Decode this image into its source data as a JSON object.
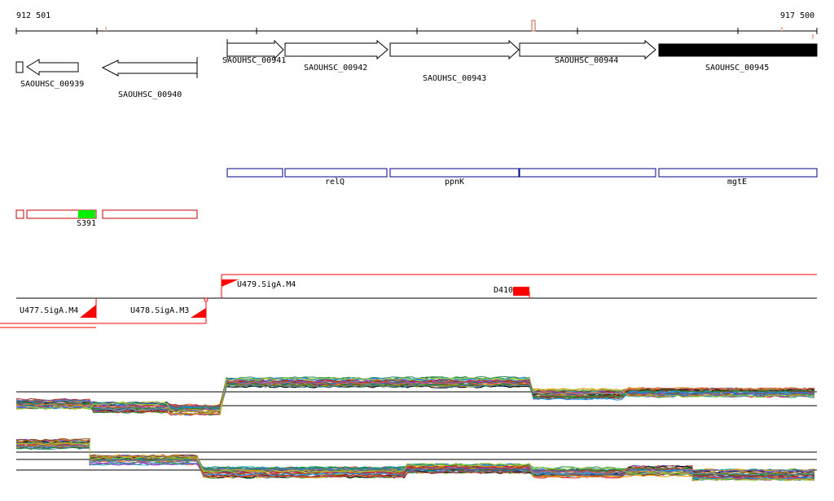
{
  "coords": {
    "start": "912 501",
    "end": "917 500"
  },
  "genes": [
    {
      "id": "SAOUHSC_00939",
      "label": "SAOUHSC_00939",
      "strand": "-"
    },
    {
      "id": "SAOUHSC_00940",
      "label": "SAOUHSC_00940",
      "strand": "-"
    },
    {
      "id": "SAOUHSC_00941",
      "label": "SAOUHSC_00941",
      "strand": "+"
    },
    {
      "id": "SAOUHSC_00942",
      "label": "SAOUHSC_00942",
      "strand": "+"
    },
    {
      "id": "SAOUHSC_00943",
      "label": "SAOUHSC_00943",
      "strand": "+"
    },
    {
      "id": "SAOUHSC_00944",
      "label": "SAOUHSC_00944",
      "strand": "+"
    },
    {
      "id": "SAOUHSC_00945",
      "label": "SAOUHSC_00945",
      "strand": "+",
      "selected": true
    }
  ],
  "gene_names": [
    "",
    "relQ",
    "ppnK",
    "",
    "mgtE"
  ],
  "segments": {
    "label": "S391"
  },
  "tss": [
    {
      "label": "U477.SigA.M4"
    },
    {
      "label": "U478.SigA.M3"
    },
    {
      "label": "U479.SigA.M4"
    }
  ],
  "deletion": {
    "label": "D410"
  },
  "colors": {
    "gene_outline": "#000000",
    "selected_gene": "#000000",
    "gene_name_box": "#00008b",
    "segment_box": "#c00000",
    "segment_highlight": "#00ee00",
    "tss_flag": "#ff0000",
    "expression_line_default": "#888888"
  }
}
